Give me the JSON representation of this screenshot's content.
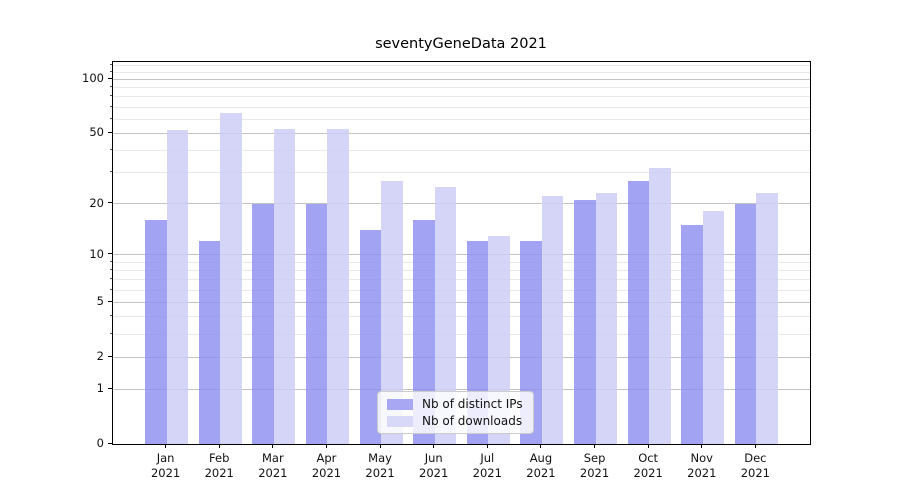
{
  "figure": {
    "title": "seventyGeneData 2021"
  },
  "chart_data": {
    "type": "bar",
    "title": "seventyGeneData 2021",
    "categories": [
      "Jan",
      "Feb",
      "Mar",
      "Apr",
      "May",
      "Jun",
      "Jul",
      "Aug",
      "Sep",
      "Oct",
      "Nov",
      "Dec"
    ],
    "x_tick_year": "2021",
    "series": [
      {
        "name": "Nb of distinct IPs",
        "color": "rgba(143,143,240,0.82)",
        "swatch_color": "#a7a7f3",
        "values": [
          16,
          12,
          20,
          20,
          14,
          16,
          12,
          12,
          21,
          27,
          15,
          20
        ]
      },
      {
        "name": "Nb of downloads",
        "color": "rgba(206,206,247,0.85)",
        "swatch_color": "#d8d8f8",
        "values": [
          52,
          65,
          53,
          53,
          27,
          25,
          13,
          22,
          23,
          32,
          18,
          23
        ]
      }
    ],
    "y_axis": {
      "scale": "log1p",
      "ticks": [
        0,
        1,
        2,
        5,
        10,
        20,
        50,
        100
      ],
      "minor_ticks": [
        3,
        4,
        6,
        7,
        8,
        9,
        30,
        40,
        60,
        70,
        80,
        90,
        110,
        120
      ],
      "max": 125,
      "min": 0
    },
    "xlabel": "",
    "ylabel": "",
    "grid": true,
    "legend_position": "lower center inside"
  }
}
